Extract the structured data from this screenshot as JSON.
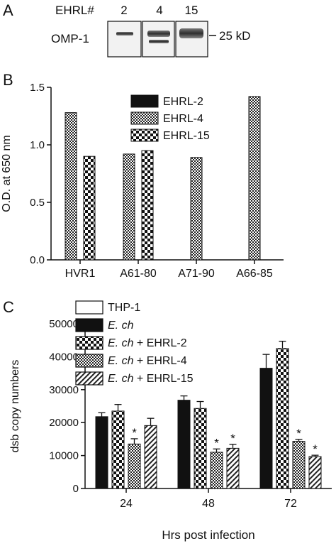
{
  "panel_labels": {
    "a": "A",
    "b": "B",
    "c": "C"
  },
  "panel_a": {
    "header_label": "EHRL#",
    "lane_labels": [
      "2",
      "4",
      "15"
    ],
    "row_label": "OMP-1",
    "marker_label": "25 kD"
  },
  "colors": {
    "ink": "#111111",
    "background": "#ffffff",
    "blot_background": "#f2f2f2",
    "band": "#3a3a3a"
  },
  "chart_data": [
    {
      "type": "bar",
      "panel": "B",
      "categories": [
        "HVR1",
        "A61-80",
        "A71-90",
        "A66-85"
      ],
      "ylabel": "O.D. at 650 nm",
      "xlabel": "",
      "ylim": [
        0,
        1.5
      ],
      "yticks": [
        "0.0",
        "0.5",
        "1.0",
        "1.5"
      ],
      "legend_position": "top-right",
      "series": [
        {
          "name": "EHRL-2",
          "fill": "solid-black",
          "values": [
            null,
            null,
            null,
            null
          ]
        },
        {
          "name": "EHRL-4",
          "fill": "fine-checker",
          "values": [
            1.28,
            0.92,
            0.89,
            1.42
          ]
        },
        {
          "name": "EHRL-15",
          "fill": "coarse-checker",
          "values": [
            0.9,
            0.95,
            null,
            null
          ]
        }
      ]
    },
    {
      "type": "bar",
      "panel": "C",
      "categories": [
        "24",
        "48",
        "72"
      ],
      "xlabel": "Hrs post infection",
      "ylabel": "dsb copy numbers",
      "ylim": [
        0,
        50000
      ],
      "yticks": [
        "0",
        "10000",
        "20000",
        "30000",
        "40000",
        "50000"
      ],
      "legend_position": "top-left",
      "series": [
        {
          "name_parts": [
            "",
            "THP-1"
          ],
          "fill": "white",
          "values": [
            null,
            null,
            null
          ],
          "errors": [
            null,
            null,
            null
          ],
          "sig": [
            false,
            false,
            false
          ]
        },
        {
          "name_parts": [
            "E. ch",
            ""
          ],
          "fill": "solid-black",
          "values": [
            21800,
            26800,
            36500
          ],
          "errors": [
            1200,
            1300,
            4200
          ],
          "sig": [
            false,
            false,
            false
          ]
        },
        {
          "name_parts": [
            "E. ch",
            " + EHRL-2"
          ],
          "fill": "coarse-checker",
          "values": [
            23500,
            24300,
            42500
          ],
          "errors": [
            2000,
            2100,
            2200
          ],
          "sig": [
            false,
            false,
            false
          ]
        },
        {
          "name_parts": [
            "E. ch",
            " + EHRL-4"
          ],
          "fill": "fine-checker",
          "values": [
            13500,
            11000,
            14300
          ],
          "errors": [
            1600,
            1000,
            600
          ],
          "sig": [
            true,
            true,
            true
          ]
        },
        {
          "name_parts": [
            "E. ch",
            " + EHRL-15"
          ],
          "fill": "diagonal-hatch",
          "values": [
            19100,
            12200,
            9700
          ],
          "errors": [
            2200,
            1200,
            400
          ],
          "sig": [
            false,
            true,
            true
          ]
        }
      ],
      "annotation_symbol": "*"
    }
  ]
}
